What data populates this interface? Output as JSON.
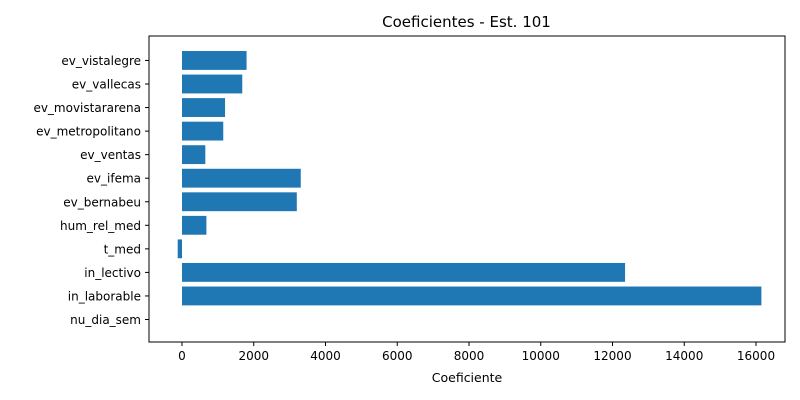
{
  "chart_data": {
    "type": "bar",
    "orientation": "horizontal",
    "title": "Coeficientes - Est. 101",
    "xlabel": "Coeficiente",
    "ylabel": "",
    "xlim": [
      -900,
      17000
    ],
    "xticks": [
      0,
      2000,
      4000,
      6000,
      8000,
      10000,
      12000,
      14000,
      16000
    ],
    "grid": false,
    "bar_color": "#1f77b4",
    "categories": [
      "nu_dia_sem",
      "in_laborable",
      "in_lectivo",
      "t_med",
      "hum_rel_med",
      "ev_bernabeu",
      "ev_ifema",
      "ev_ventas",
      "ev_metropolitano",
      "ev_movistararena",
      "ev_vallecas",
      "ev_vistalegre"
    ],
    "values": [
      0,
      16150,
      12350,
      -120,
      680,
      3200,
      3310,
      650,
      1150,
      1200,
      1680,
      1800
    ]
  }
}
